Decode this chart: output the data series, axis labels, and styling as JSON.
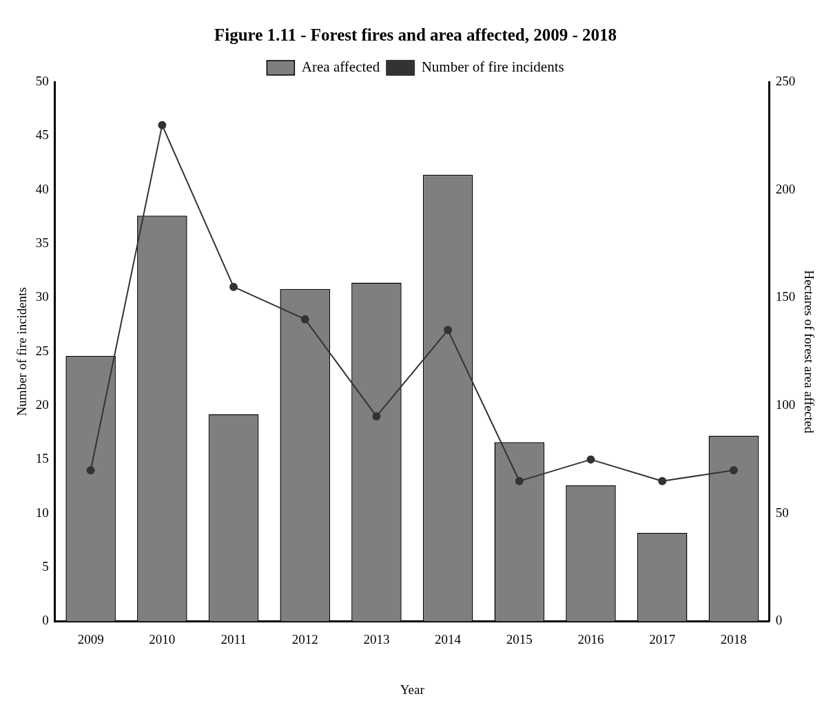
{
  "chart_data": {
    "type": "bar",
    "title": "Figure 1.11 - Forest fires and area affected, 2009 - 2018",
    "xlabel": "Year",
    "ylabel": "Number of fire incidents",
    "y2label": "Hectares of forest area affected",
    "categories": [
      "2009",
      "2010",
      "2011",
      "2012",
      "2013",
      "2014",
      "2015",
      "2016",
      "2017",
      "2018"
    ],
    "series": [
      {
        "name": "Area affected",
        "axis": "y2",
        "color": "#7f7f7f",
        "values": [
          123,
          188,
          96,
          154,
          157,
          207,
          83,
          63,
          41,
          86
        ]
      },
      {
        "name": "Number of fire incidents",
        "type": "line",
        "axis": "y",
        "color": "#333333",
        "values": [
          14,
          46,
          31,
          28,
          19,
          27,
          13,
          15,
          13,
          14
        ]
      }
    ],
    "ylim": [
      0,
      50
    ],
    "yticks": [
      0,
      5,
      10,
      15,
      20,
      25,
      30,
      35,
      40,
      45,
      50
    ],
    "y2lim": [
      0,
      250
    ],
    "y2ticks": [
      0,
      50,
      100,
      150,
      200,
      250
    ],
    "grid": false,
    "legend": "top",
    "marker": "circle"
  }
}
